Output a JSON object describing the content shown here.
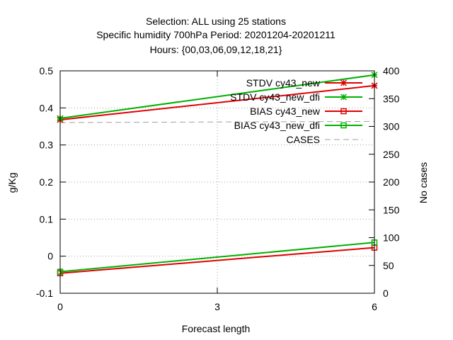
{
  "chart_data": {
    "type": "line",
    "title_lines": [
      "Selection: ALL using     25 stations",
      "Specific humidity 700hPa   Period: 20201204-20201211",
      "Hours: {00,03,06,09,12,18,21}"
    ],
    "xlabel": "Forecast length",
    "ylabel": "g/Kg",
    "y2label": "No cases",
    "xlim": [
      0,
      6
    ],
    "ylim": [
      -0.1,
      0.5
    ],
    "y2lim": [
      0,
      400
    ],
    "x_ticks": [
      "0",
      "3",
      "6"
    ],
    "y_ticks": [
      "-0.1",
      "0",
      "0.1",
      "0.2",
      "0.3",
      "0.4",
      "0.5"
    ],
    "y2_ticks": [
      "0",
      "50",
      "100",
      "150",
      "200",
      "250",
      "300",
      "350",
      "400"
    ],
    "grid": true,
    "legend_position": "top-right",
    "series": [
      {
        "name": "STDV cy43_new",
        "axis": "y",
        "color": "#e00000",
        "marker": "star",
        "x": [
          0,
          6
        ],
        "values": [
          0.368,
          0.46
        ]
      },
      {
        "name": "STDV cy43_new_dfi",
        "axis": "y",
        "color": "#00b000",
        "marker": "star",
        "x": [
          0,
          6
        ],
        "values": [
          0.372,
          0.489
        ]
      },
      {
        "name": "BIAS cy43_new",
        "axis": "y",
        "color": "#e00000",
        "marker": "square",
        "x": [
          0,
          6
        ],
        "values": [
          -0.046,
          0.023
        ]
      },
      {
        "name": "BIAS cy43_new_dfi",
        "axis": "y",
        "color": "#00b000",
        "marker": "square",
        "x": [
          0,
          6
        ],
        "values": [
          -0.042,
          0.037
        ]
      },
      {
        "name": "CASES",
        "axis": "y2",
        "color": "#a0a0a0",
        "marker": "none",
        "dashed": true,
        "x": [
          0,
          6
        ],
        "values": [
          307,
          309
        ]
      }
    ]
  }
}
